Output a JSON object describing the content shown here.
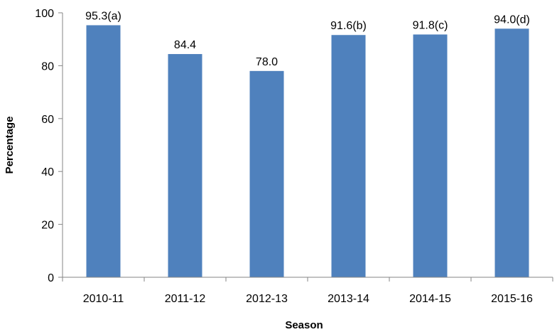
{
  "chart_data": {
    "type": "bar",
    "title": "",
    "xlabel": "Season",
    "ylabel": "Percentage",
    "categories": [
      "2010-11",
      "2011-12",
      "2012-13",
      "2013-14",
      "2014-15",
      "2015-16"
    ],
    "values": [
      95.3,
      84.4,
      78.0,
      91.6,
      91.8,
      94.0
    ],
    "data_labels": [
      "95.3(a)",
      "84.4",
      "78.0",
      "91.6(b)",
      "91.8(c)",
      "94.0(d)"
    ],
    "ylim": [
      0,
      100
    ],
    "yticks": [
      0,
      20,
      40,
      60,
      80,
      100
    ],
    "ytick_labels": [
      "0",
      "20",
      "40",
      "60",
      "80",
      "100"
    ],
    "grid": false,
    "legend": "none",
    "bar_color": "#4F81BD"
  }
}
